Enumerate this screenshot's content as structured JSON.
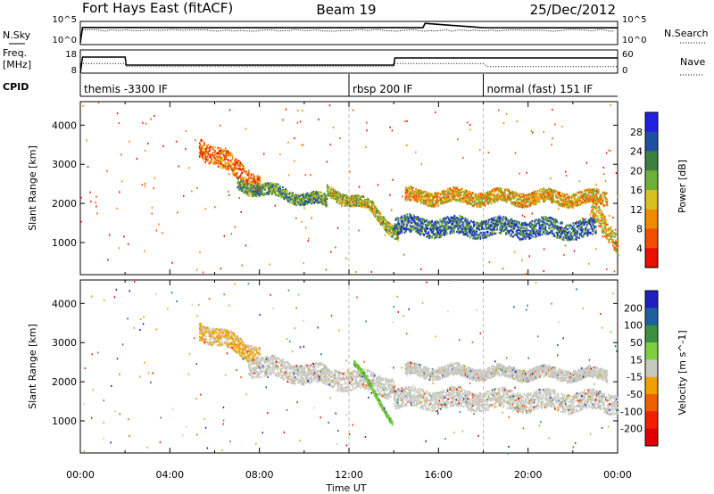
{
  "header": {
    "station": "Fort Hays East (fitACF)",
    "beam": "Beam 19",
    "date": "25/Dec/2012"
  },
  "strip_labels": {
    "nsky": "N.Sky",
    "nsearch": "N.Search",
    "freq_line1": "Freq.",
    "freq_line2": "[MHz]",
    "nave": "Nave",
    "cpid": "CPID"
  },
  "noise_axis": {
    "left_ticks": [
      "10^5",
      "10^0"
    ],
    "right_ticks": [
      "10^5",
      "10^0"
    ]
  },
  "freq_axis": {
    "left_ticks": [
      "18",
      "8"
    ],
    "right_ticks": [
      "60",
      "0"
    ]
  },
  "cpid_modes": [
    {
      "label": "themis -3300 IF",
      "start_hour": 0
    },
    {
      "label": "rbsp 200 IF",
      "start_hour": 12
    },
    {
      "label": "normal (fast) 151 IF",
      "start_hour": 18
    }
  ],
  "x_axis": {
    "title": "Time UT",
    "ticks": [
      "00:00",
      "04:00",
      "08:00",
      "12:00",
      "16:00",
      "20:00",
      "00:00"
    ]
  },
  "chart_data": [
    {
      "type": "line",
      "title": "N.Sky / N.Search",
      "ylabel_left": "N.Sky",
      "ylabel_right": "N.Search",
      "yscale": "log",
      "ylim": [
        1,
        100000
      ],
      "x_unit": "hour UT",
      "series": [
        {
          "name": "N.Sky",
          "x": [
            0,
            0.1,
            2,
            6,
            10,
            14,
            15.3,
            15.4,
            18,
            22,
            24
          ],
          "values": [
            1,
            8000,
            8000,
            7000,
            7000,
            7500,
            7000,
            90000,
            7000,
            6500,
            6500
          ]
        }
      ]
    },
    {
      "type": "line",
      "title": "Freq / Nave",
      "ylabel_left": "Freq. [MHz]",
      "ylabel_right": "Nave",
      "xlim": [
        0,
        24
      ],
      "series": [
        {
          "name": "Freq.",
          "x": [
            0,
            0.1,
            2,
            2.05,
            14,
            14.05,
            24
          ],
          "values": [
            8,
            17,
            17,
            12.5,
            12.5,
            16.5,
            16.5
          ]
        },
        {
          "name": "Nave",
          "x": [
            0,
            2,
            2.05,
            14,
            14.05,
            18,
            18.2,
            24
          ],
          "values": [
            32,
            32,
            22,
            22,
            32,
            32,
            22,
            22
          ]
        }
      ]
    },
    {
      "type": "heatmap",
      "title": "Power",
      "ylabel": "Slant Range [km]",
      "ylim": [
        180,
        4600
      ],
      "y_ticks": [
        1000,
        2000,
        3000,
        4000
      ],
      "xlim": [
        0,
        24
      ],
      "colorbar": {
        "label": "Power [dB]",
        "ticks": [
          "28",
          "24",
          "20",
          "16",
          "12",
          "8",
          "4"
        ],
        "colors": [
          "#2020e0",
          "#1f4fa0",
          "#3c8040",
          "#6fb03a",
          "#d8c020",
          "#f08a00",
          "#f05000",
          "#e81000"
        ]
      },
      "bands": [
        {
          "t_start": 5.3,
          "t_end": 8.0,
          "range_start_km": 3500,
          "range_end_km": 2500,
          "thickness_km": 500,
          "level_db": 10
        },
        {
          "t_start": 7.0,
          "t_end": 11.0,
          "range_start_km": 2500,
          "range_end_km": 2050,
          "thickness_km": 300,
          "level_db": 22
        },
        {
          "t_start": 11.0,
          "t_end": 13.0,
          "range_start_km": 2350,
          "range_end_km": 1900,
          "thickness_km": 280,
          "level_db": 20
        },
        {
          "t_start": 13.0,
          "t_end": 14.2,
          "range_start_km": 1900,
          "range_end_km": 1200,
          "thickness_km": 300,
          "level_db": 18
        },
        {
          "t_start": 14.0,
          "t_end": 23.0,
          "range_start_km": 1450,
          "range_end_km": 1350,
          "thickness_km": 450,
          "level_db": 26
        },
        {
          "t_start": 14.5,
          "t_end": 23.5,
          "range_start_km": 2200,
          "range_end_km": 2150,
          "thickness_km": 350,
          "level_db": 14
        },
        {
          "t_start": 22.8,
          "t_end": 24.0,
          "range_start_km": 1900,
          "range_end_km": 1000,
          "thickness_km": 500,
          "level_db": 16
        }
      ]
    },
    {
      "type": "heatmap",
      "title": "Velocity",
      "ylabel": "Slant Range [km]",
      "ylim": [
        180,
        4600
      ],
      "y_ticks": [
        1000,
        2000,
        3000,
        4000
      ],
      "xlim": [
        0,
        24
      ],
      "colorbar": {
        "label": "Velocity [m s^-1]",
        "ticks": [
          "200",
          "100",
          "50",
          "15",
          "-15",
          "-50",
          "-100",
          "-200"
        ],
        "colors": [
          "#2020c0",
          "#1f5fa0",
          "#3c9040",
          "#7cd040",
          "#c8c8c0",
          "#f0a000",
          "#f06000",
          "#f02000",
          "#e00000"
        ]
      },
      "bands": [
        {
          "t_start": 5.3,
          "t_end": 8.0,
          "range_start_km": 3350,
          "range_end_km": 2700,
          "thickness_km": 450,
          "velocity": -30
        },
        {
          "t_start": 7.5,
          "t_end": 14.0,
          "range_start_km": 2450,
          "range_end_km": 1900,
          "thickness_km": 500,
          "velocity": 0
        },
        {
          "t_start": 12.2,
          "t_end": 13.9,
          "range_start_km": 2500,
          "range_end_km": 1050,
          "thickness_km": 120,
          "velocity": 30
        },
        {
          "t_start": 14.0,
          "t_end": 24.0,
          "range_start_km": 1600,
          "range_end_km": 1500,
          "thickness_km": 500,
          "velocity": 0
        },
        {
          "t_start": 14.5,
          "t_end": 23.5,
          "range_start_km": 2300,
          "range_end_km": 2200,
          "thickness_km": 300,
          "velocity": 0
        }
      ]
    }
  ]
}
